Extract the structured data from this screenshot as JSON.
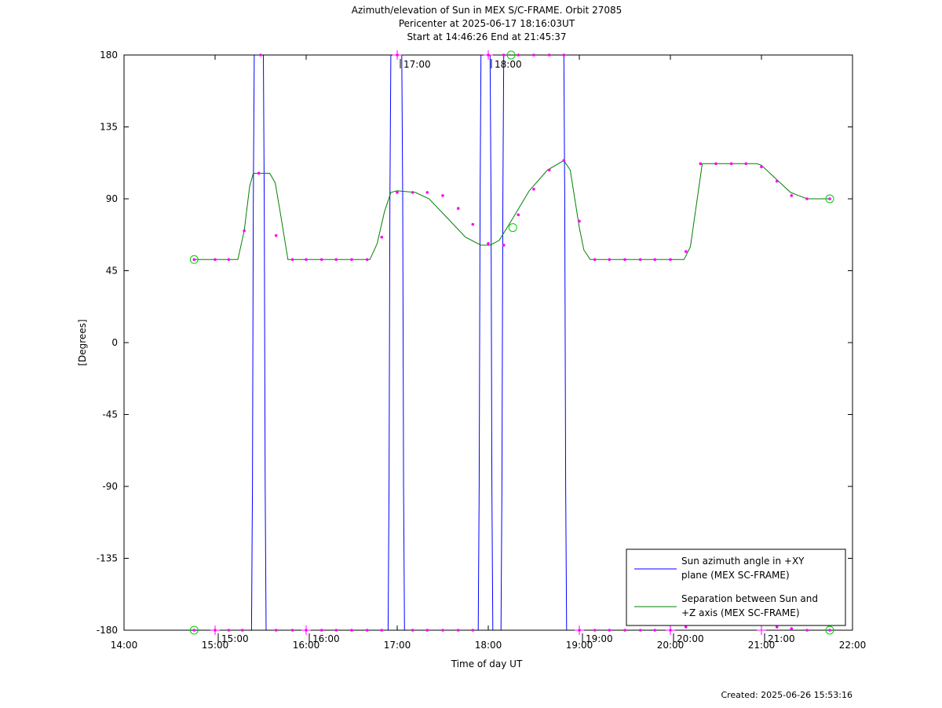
{
  "chart_data": {
    "type": "line",
    "title_lines": [
      "Azimuth/elevation of Sun in MEX S/C-FRAME.  Orbit 27085",
      "Pericenter at 2025-06-17 18:16:03UT",
      "Start at 14:46:26 End at 21:45:37"
    ],
    "xlabel": "Time of day UT",
    "ylabel": "[Degrees]",
    "xlim": [
      14.0,
      22.0
    ],
    "ylim": [
      -180,
      180
    ],
    "x_ticks": [
      14,
      15,
      16,
      17,
      18,
      19,
      20,
      21,
      22
    ],
    "x_tick_labels": [
      "14:00",
      "15:00",
      "16:00",
      "17:00",
      "18:00",
      "19:00",
      "20:00",
      "21:00",
      "22:00"
    ],
    "y_ticks": [
      180,
      135,
      90,
      45,
      0,
      -45,
      -90,
      -135,
      -180
    ],
    "y_tick_labels": [
      "180",
      "135",
      "90",
      "45",
      "0",
      "-45",
      "-90",
      "-135",
      "-180"
    ],
    "hour_markers": [
      {
        "label": "15:00",
        "x": 15.0,
        "y": -180
      },
      {
        "label": "16:00",
        "x": 16.0,
        "y": -180
      },
      {
        "label": "17:00",
        "x": 17.0,
        "y": 180
      },
      {
        "label": "18:00",
        "x": 18.0,
        "y": 180
      },
      {
        "label": "19:00",
        "x": 19.0,
        "y": -180
      },
      {
        "label": "20:00",
        "x": 20.0,
        "y": -180
      },
      {
        "label": "21:00",
        "x": 21.0,
        "y": -180
      }
    ],
    "series": [
      {
        "name": "Sun azimuth angle in +XY plane (MEX SC-FRAME)",
        "color": "#0000ff",
        "x": [
          14.77,
          15.4,
          15.41,
          15.42,
          15.43,
          15.53,
          15.54,
          15.55,
          15.56,
          16.9,
          16.91,
          16.92,
          16.93,
          17.05,
          17.06,
          17.07,
          17.08,
          17.89,
          17.9,
          17.91,
          17.92,
          18.02,
          18.03,
          18.04,
          18.05,
          18.14,
          18.15,
          18.16,
          18.17,
          18.83,
          18.84,
          18.85,
          18.86,
          21.75
        ],
        "y": [
          -180,
          -180,
          -90,
          90,
          180,
          180,
          90,
          -90,
          -180,
          -180,
          -90,
          90,
          180,
          180,
          90,
          -90,
          -180,
          -180,
          -90,
          90,
          180,
          180,
          90,
          -90,
          -180,
          -180,
          -90,
          90,
          180,
          180,
          90,
          -90,
          -180,
          -180
        ]
      },
      {
        "name": "Separation between Sun and +Z axis (MEX SC-FRAME)",
        "color": "#008000",
        "x": [
          14.77,
          15.0,
          15.15,
          15.25,
          15.32,
          15.38,
          15.42,
          15.55,
          15.6,
          15.66,
          15.72,
          15.8,
          16.0,
          16.5,
          16.7,
          16.78,
          16.86,
          16.93,
          17.0,
          17.2,
          17.35,
          17.55,
          17.75,
          17.92,
          18.02,
          18.12,
          18.25,
          18.45,
          18.65,
          18.83,
          18.9,
          18.95,
          19.0,
          19.05,
          19.12,
          19.5,
          20.0,
          20.15,
          20.22,
          20.27,
          20.35,
          20.8,
          20.95,
          21.0,
          21.15,
          21.32,
          21.5,
          21.75
        ],
        "y": [
          52,
          52,
          52,
          52,
          70,
          98,
          106,
          106,
          106,
          100,
          80,
          52,
          52,
          52,
          52,
          62,
          82,
          94,
          95,
          94,
          90,
          78,
          66,
          61,
          61,
          64,
          76,
          95,
          108,
          114,
          108,
          90,
          72,
          58,
          52,
          52,
          52,
          52,
          60,
          80,
          112,
          112,
          112,
          111,
          103,
          94,
          90,
          90
        ]
      },
      {
        "name": "",
        "color": "#ff00ff",
        "x": [
          14.77,
          15.0,
          15.15,
          15.32,
          15.48,
          15.67,
          15.85,
          16.0,
          16.17,
          16.33,
          16.5,
          16.67,
          16.83,
          17.0,
          17.17,
          17.33,
          17.5,
          17.67,
          17.83,
          18.0,
          18.17,
          18.33,
          18.5,
          18.67,
          18.83,
          19.0,
          19.17,
          19.33,
          19.5,
          19.67,
          19.83,
          20.0,
          20.17,
          20.33,
          20.5,
          20.67,
          20.83,
          21.0,
          21.17,
          21.33,
          21.5,
          21.75
        ],
        "y": [
          52,
          52,
          52,
          70,
          106,
          67,
          52,
          52,
          52,
          52,
          52,
          52,
          66,
          94,
          94,
          94,
          92,
          84,
          74,
          62,
          61,
          80,
          96,
          108,
          114,
          76,
          52,
          52,
          52,
          52,
          52,
          52,
          57,
          112,
          112,
          112,
          112,
          110,
          101,
          92,
          90,
          90
        ]
      },
      {
        "name": "",
        "color": "#ff00ff",
        "x": [
          14.77,
          15.0,
          15.15,
          15.3,
          15.5,
          15.67,
          15.85,
          16.0,
          16.17,
          16.33,
          16.5,
          16.67,
          16.83,
          17.0,
          17.17,
          17.33,
          17.5,
          17.67,
          17.83,
          18.0,
          18.17,
          18.33,
          18.5,
          18.67,
          18.83,
          19.0,
          19.17,
          19.33,
          19.5,
          19.67,
          19.83,
          20.0,
          20.17,
          20.33,
          20.5,
          20.67,
          20.83,
          21.0,
          21.17,
          21.33,
          21.5,
          21.75
        ],
        "y": [
          -180,
          -180,
          -180,
          -180,
          180,
          -180,
          -180,
          -180,
          -180,
          -180,
          -180,
          -180,
          -180,
          180,
          -180,
          -180,
          -180,
          -180,
          -180,
          180,
          180,
          180,
          180,
          180,
          180,
          -180,
          -180,
          -180,
          -180,
          -180,
          -180,
          -180,
          -178,
          -176,
          -176,
          -176,
          -176,
          -176,
          -178,
          -179,
          -180,
          -180
        ]
      }
    ],
    "legend": {
      "position": "bottom-right",
      "entries": [
        {
          "text_lines": [
            "Sun azimuth angle in +XY",
            "plane (MEX SC-FRAME)"
          ],
          "color": "#0000ff"
        },
        {
          "text_lines": [
            "Separation between Sun and",
            "+Z axis (MEX SC-FRAME)"
          ],
          "color": "#008000"
        }
      ]
    },
    "circle_markers": [
      {
        "x": 14.77,
        "y": 52
      },
      {
        "x": 14.77,
        "y": -180
      },
      {
        "x": 18.25,
        "y": 180
      },
      {
        "x": 18.27,
        "y": 72
      },
      {
        "x": 21.75,
        "y": 90
      },
      {
        "x": 21.75,
        "y": -180
      }
    ],
    "grid": false
  },
  "footer": {
    "created": "Created: 2025-06-26 15:53:16"
  }
}
